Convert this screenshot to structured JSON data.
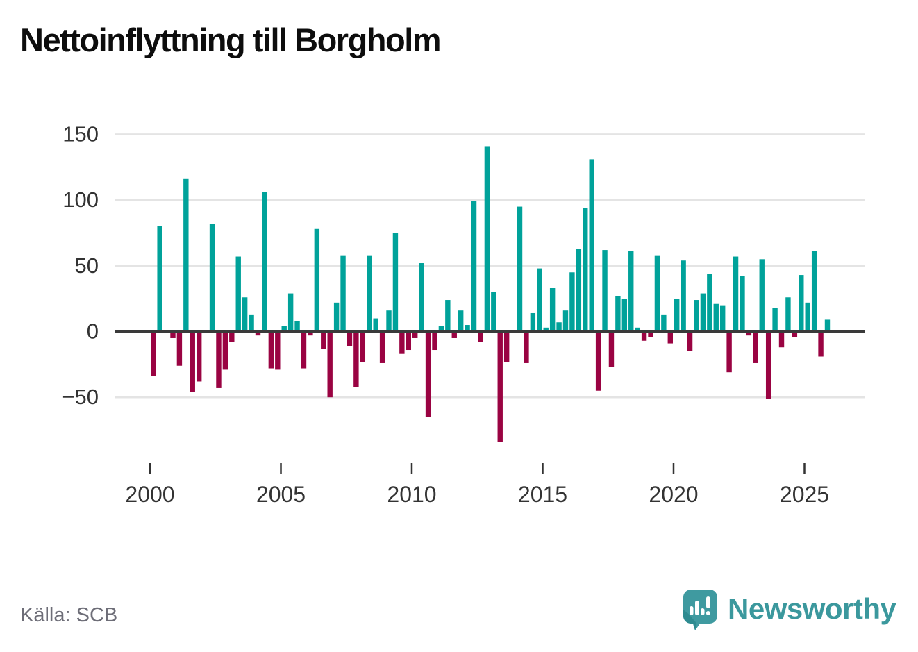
{
  "title": "Nettoinflyttning till Borgholm",
  "source": "Källa: SCB",
  "logo": {
    "text": "Newsworthy",
    "icon": "newsworthy-speech-bubble-chart-icon"
  },
  "colors": {
    "positive": "#00a29a",
    "negative": "#9a0342",
    "axis": "#3a3a3a",
    "grid": "#e4e4e4",
    "tick_label": "#333333",
    "title_text": "#0d0d0d",
    "source_text": "#6d6d77",
    "logo": "#3b989d"
  },
  "chart_data": {
    "type": "bar",
    "title": "Nettoinflyttning till Borgholm",
    "xlabel": "",
    "ylabel": "",
    "x_period": "quarterly",
    "x_range": [
      "2000Q1",
      "2025Q4"
    ],
    "x_tick_labels": [
      "2000",
      "2005",
      "2010",
      "2015",
      "2020",
      "2025"
    ],
    "y_tick_labels": [
      150,
      100,
      50,
      0,
      -50
    ],
    "ylim": [
      -90,
      155
    ],
    "grid": "horizontal",
    "legend": "none",
    "values": [
      -34,
      80,
      0,
      -5,
      -26,
      116,
      -46,
      -38,
      0,
      82,
      -43,
      -29,
      -8,
      57,
      26,
      13,
      -3,
      106,
      -28,
      -29,
      4,
      29,
      8,
      -28,
      -3,
      78,
      -13,
      -50,
      22,
      58,
      -11,
      -42,
      -23,
      58,
      10,
      -24,
      16,
      75,
      -17,
      -14,
      -5,
      52,
      -65,
      -14,
      4,
      24,
      -5,
      16,
      5,
      99,
      -8,
      141,
      30,
      -84,
      -23,
      0,
      95,
      -24,
      14,
      48,
      3,
      33,
      7,
      16,
      45,
      63,
      94,
      131,
      -45,
      62,
      -27,
      27,
      25,
      61,
      3,
      -7,
      -4,
      58,
      13,
      -9,
      25,
      54,
      -15,
      24,
      29,
      44,
      21,
      20,
      -31,
      57,
      42,
      -3,
      -24,
      55,
      -51,
      18,
      -12,
      26,
      -4,
      43,
      22,
      61,
      -19,
      9
    ]
  }
}
